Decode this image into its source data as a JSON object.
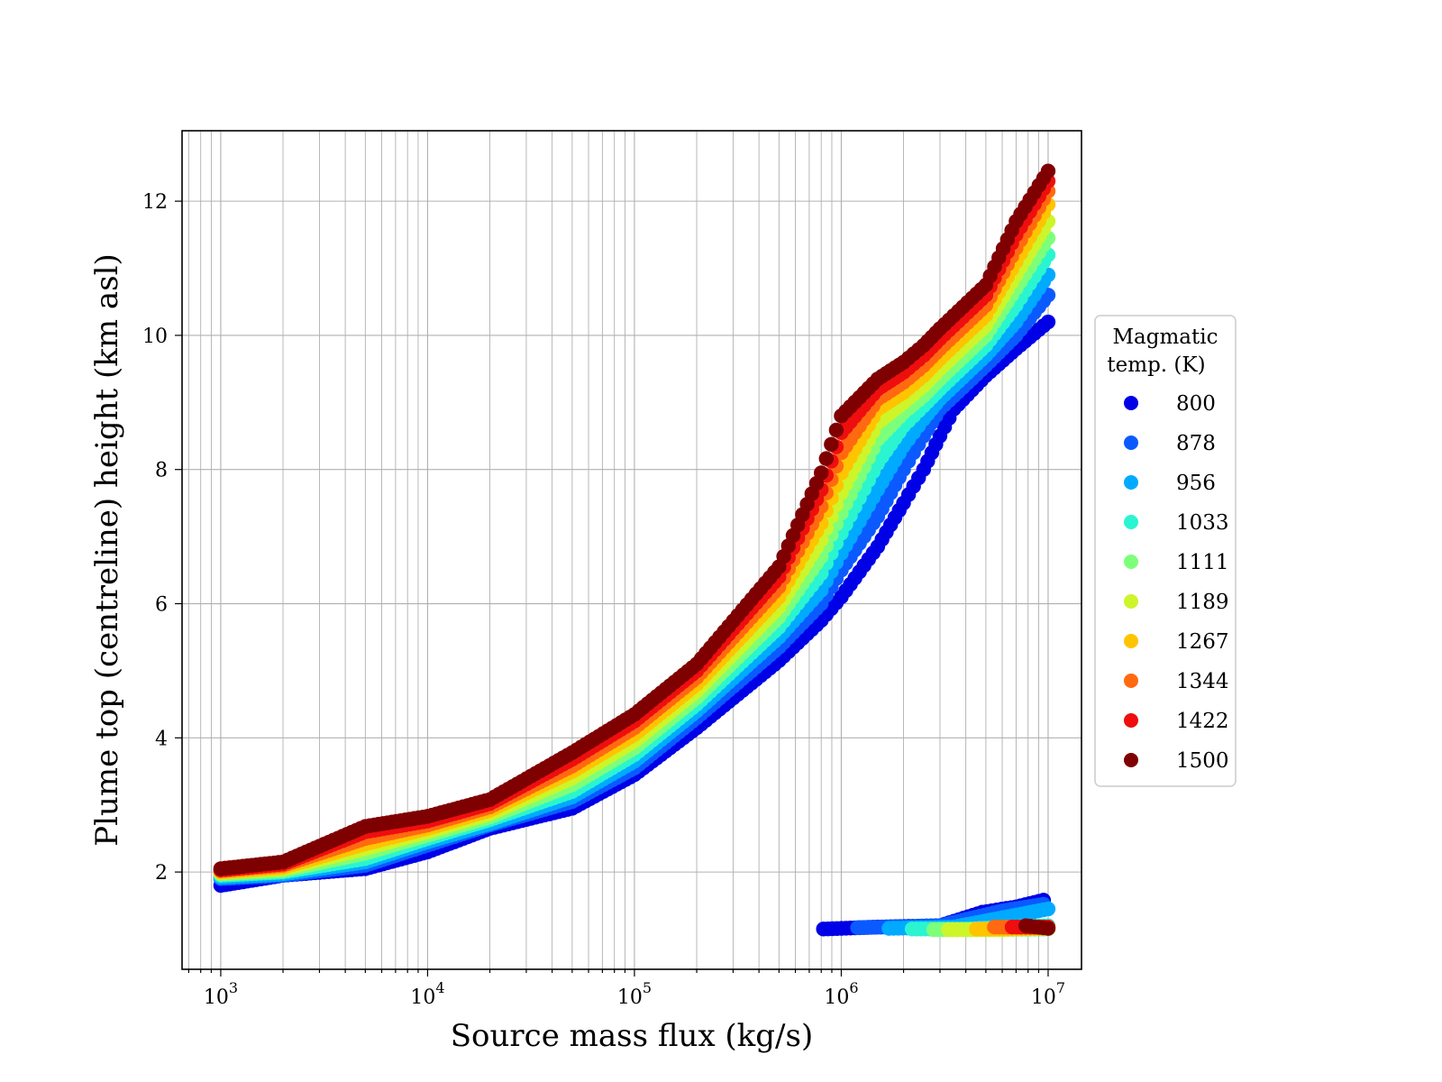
{
  "chart_data": {
    "type": "scatter",
    "title": "",
    "xlabel": "Source mass flux (kg/s)",
    "ylabel": "Plume top (centreline) height (km asl)",
    "xscale": "log",
    "xlim": [
      650,
      14500000
    ],
    "ylim": [
      0.55,
      13.05
    ],
    "x_ticks": [
      {
        "base": "10",
        "exp": "3",
        "value": 1000
      },
      {
        "base": "10",
        "exp": "4",
        "value": 10000
      },
      {
        "base": "10",
        "exp": "5",
        "value": 100000
      },
      {
        "base": "10",
        "exp": "6",
        "value": 1000000
      },
      {
        "base": "10",
        "exp": "7",
        "value": 10000000
      }
    ],
    "y_ticks": [
      "2",
      "4",
      "6",
      "8",
      "10",
      "12"
    ],
    "grid": "major and minor (x), major (y)",
    "legend": {
      "title_line1": "Magmatic",
      "title_line2": "temp. (K)",
      "placement": "outside right"
    },
    "series": [
      {
        "name": "800",
        "color": "#0000e6",
        "points": [
          [
            1000,
            1.8
          ],
          [
            2000,
            1.95
          ],
          [
            5000,
            2.05
          ],
          [
            10000,
            2.3
          ],
          [
            20000,
            2.65
          ],
          [
            50000,
            2.95
          ],
          [
            100000,
            3.45
          ],
          [
            200000,
            4.15
          ],
          [
            500000,
            5.15
          ],
          [
            800000,
            5.75
          ],
          [
            1000000,
            6.1
          ],
          [
            1500000,
            6.85
          ],
          [
            2000000,
            7.5
          ],
          [
            2500000,
            8.0
          ],
          [
            3000000,
            8.5
          ],
          [
            3500000,
            8.9
          ],
          [
            5000000,
            9.4
          ],
          [
            7000000,
            9.8
          ],
          [
            10000000,
            10.2
          ]
        ]
      },
      {
        "name": "878",
        "color": "#0a5aff",
        "points": [
          [
            1000,
            1.9
          ],
          [
            2000,
            1.95
          ],
          [
            5000,
            2.1
          ],
          [
            10000,
            2.4
          ],
          [
            20000,
            2.7
          ],
          [
            50000,
            3.05
          ],
          [
            100000,
            3.55
          ],
          [
            200000,
            4.3
          ],
          [
            500000,
            5.35
          ],
          [
            800000,
            6.0
          ],
          [
            1000000,
            6.5
          ],
          [
            1500000,
            7.3
          ],
          [
            2000000,
            8.0
          ],
          [
            2500000,
            8.5
          ],
          [
            3000000,
            8.9
          ],
          [
            5000000,
            9.55
          ],
          [
            7000000,
            10.0
          ],
          [
            10000000,
            10.6
          ]
        ]
      },
      {
        "name": "956",
        "color": "#00aaff",
        "points": [
          [
            1000,
            1.92
          ],
          [
            2000,
            1.97
          ],
          [
            5000,
            2.15
          ],
          [
            10000,
            2.45
          ],
          [
            20000,
            2.72
          ],
          [
            50000,
            3.12
          ],
          [
            100000,
            3.65
          ],
          [
            200000,
            4.4
          ],
          [
            500000,
            5.5
          ],
          [
            800000,
            6.2
          ],
          [
            1000000,
            6.75
          ],
          [
            1500000,
            7.7
          ],
          [
            2000000,
            8.35
          ],
          [
            2500000,
            8.75
          ],
          [
            3000000,
            9.05
          ],
          [
            5000000,
            9.7
          ],
          [
            7000000,
            10.2
          ],
          [
            10000000,
            10.9
          ]
        ]
      },
      {
        "name": "1033",
        "color": "#2af5d0",
        "points": [
          [
            1000,
            1.95
          ],
          [
            2000,
            2.0
          ],
          [
            5000,
            2.2
          ],
          [
            10000,
            2.5
          ],
          [
            20000,
            2.78
          ],
          [
            50000,
            3.2
          ],
          [
            100000,
            3.75
          ],
          [
            200000,
            4.5
          ],
          [
            500000,
            5.65
          ],
          [
            800000,
            6.45
          ],
          [
            1000000,
            7.05
          ],
          [
            1500000,
            8.1
          ],
          [
            2000000,
            8.65
          ],
          [
            2500000,
            8.95
          ],
          [
            3000000,
            9.2
          ],
          [
            5000000,
            9.85
          ],
          [
            7000000,
            10.45
          ],
          [
            10000000,
            11.2
          ]
        ]
      },
      {
        "name": "1111",
        "color": "#7dff7a",
        "points": [
          [
            1000,
            1.97
          ],
          [
            2000,
            2.02
          ],
          [
            5000,
            2.28
          ],
          [
            10000,
            2.55
          ],
          [
            20000,
            2.82
          ],
          [
            50000,
            3.3
          ],
          [
            100000,
            3.85
          ],
          [
            200000,
            4.6
          ],
          [
            500000,
            5.8
          ],
          [
            800000,
            6.7
          ],
          [
            1000000,
            7.35
          ],
          [
            1500000,
            8.45
          ],
          [
            2000000,
            8.85
          ],
          [
            2500000,
            9.1
          ],
          [
            3000000,
            9.35
          ],
          [
            5000000,
            10.0
          ],
          [
            7000000,
            10.7
          ],
          [
            10000000,
            11.45
          ]
        ]
      },
      {
        "name": "1189",
        "color": "#cdf52a",
        "points": [
          [
            1000,
            1.99
          ],
          [
            2000,
            2.05
          ],
          [
            5000,
            2.35
          ],
          [
            10000,
            2.6
          ],
          [
            20000,
            2.87
          ],
          [
            50000,
            3.4
          ],
          [
            100000,
            3.95
          ],
          [
            200000,
            4.7
          ],
          [
            500000,
            5.95
          ],
          [
            800000,
            6.95
          ],
          [
            1000000,
            7.65
          ],
          [
            1500000,
            8.7
          ],
          [
            2000000,
            9.0
          ],
          [
            2500000,
            9.25
          ],
          [
            3000000,
            9.5
          ],
          [
            5000000,
            10.15
          ],
          [
            7000000,
            10.9
          ],
          [
            10000000,
            11.7
          ]
        ]
      },
      {
        "name": "1267",
        "color": "#ffc400",
        "points": [
          [
            1000,
            2.0
          ],
          [
            2000,
            2.07
          ],
          [
            5000,
            2.42
          ],
          [
            10000,
            2.65
          ],
          [
            20000,
            2.92
          ],
          [
            50000,
            3.5
          ],
          [
            100000,
            4.05
          ],
          [
            200000,
            4.8
          ],
          [
            500000,
            6.1
          ],
          [
            800000,
            7.2
          ],
          [
            1000000,
            7.95
          ],
          [
            1500000,
            8.9
          ],
          [
            2000000,
            9.15
          ],
          [
            2500000,
            9.4
          ],
          [
            3000000,
            9.65
          ],
          [
            5000000,
            10.3
          ],
          [
            7000000,
            11.1
          ],
          [
            10000000,
            11.95
          ]
        ]
      },
      {
        "name": "1344",
        "color": "#ff6a10",
        "points": [
          [
            1000,
            2.02
          ],
          [
            2000,
            2.1
          ],
          [
            5000,
            2.5
          ],
          [
            10000,
            2.7
          ],
          [
            20000,
            2.97
          ],
          [
            50000,
            3.58
          ],
          [
            100000,
            4.15
          ],
          [
            200000,
            4.9
          ],
          [
            500000,
            6.25
          ],
          [
            800000,
            7.45
          ],
          [
            1000000,
            8.25
          ],
          [
            1500000,
            9.05
          ],
          [
            2000000,
            9.3
          ],
          [
            2500000,
            9.55
          ],
          [
            3000000,
            9.8
          ],
          [
            5000000,
            10.45
          ],
          [
            7000000,
            11.3
          ],
          [
            10000000,
            12.15
          ]
        ]
      },
      {
        "name": "1422",
        "color": "#ee0e0e",
        "points": [
          [
            1000,
            2.03
          ],
          [
            2000,
            2.12
          ],
          [
            5000,
            2.6
          ],
          [
            10000,
            2.76
          ],
          [
            20000,
            3.02
          ],
          [
            50000,
            3.68
          ],
          [
            100000,
            4.25
          ],
          [
            200000,
            5.0
          ],
          [
            500000,
            6.4
          ],
          [
            800000,
            7.7
          ],
          [
            1000000,
            8.55
          ],
          [
            1500000,
            9.2
          ],
          [
            2000000,
            9.45
          ],
          [
            2500000,
            9.7
          ],
          [
            3000000,
            9.95
          ],
          [
            5000000,
            10.6
          ],
          [
            7000000,
            11.5
          ],
          [
            10000000,
            12.3
          ]
        ]
      },
      {
        "name": "1500",
        "color": "#7f0000",
        "points": [
          [
            1000,
            2.05
          ],
          [
            2000,
            2.15
          ],
          [
            5000,
            2.68
          ],
          [
            10000,
            2.83
          ],
          [
            20000,
            3.08
          ],
          [
            50000,
            3.78
          ],
          [
            100000,
            4.35
          ],
          [
            200000,
            5.1
          ],
          [
            500000,
            6.55
          ],
          [
            800000,
            7.95
          ],
          [
            1000000,
            8.8
          ],
          [
            1500000,
            9.35
          ],
          [
            2000000,
            9.6
          ],
          [
            2500000,
            9.85
          ],
          [
            3000000,
            10.1
          ],
          [
            5000000,
            10.75
          ],
          [
            7000000,
            11.7
          ],
          [
            10000000,
            12.45
          ]
        ]
      }
    ],
    "lower_branch": [
      {
        "series": "800",
        "points": [
          [
            820000,
            1.15
          ],
          [
            1500000,
            1.18
          ],
          [
            3000000,
            1.2
          ],
          [
            4800000,
            1.4
          ],
          [
            7000000,
            1.48
          ],
          [
            9500000,
            1.58
          ]
        ]
      },
      {
        "series": "878",
        "points": [
          [
            1200000,
            1.17
          ],
          [
            3000000,
            1.2
          ],
          [
            6000000,
            1.42
          ],
          [
            9500000,
            1.52
          ]
        ]
      },
      {
        "series": "956",
        "points": [
          [
            1700000,
            1.16
          ],
          [
            3500000,
            1.18
          ],
          [
            10000000,
            1.45
          ]
        ]
      },
      {
        "series": "1033",
        "points": [
          [
            2200000,
            1.15
          ],
          [
            4000000,
            1.15
          ],
          [
            10000000,
            1.2
          ]
        ]
      },
      {
        "series": "1111",
        "points": [
          [
            2800000,
            1.14
          ],
          [
            5000000,
            1.14
          ],
          [
            10000000,
            1.15
          ]
        ]
      },
      {
        "series": "1189",
        "points": [
          [
            3300000,
            1.14
          ],
          [
            6000000,
            1.14
          ],
          [
            10000000,
            1.18
          ]
        ]
      },
      {
        "series": "1267",
        "points": [
          [
            4500000,
            1.15
          ],
          [
            10000000,
            1.16
          ]
        ]
      },
      {
        "series": "1344",
        "points": [
          [
            5500000,
            1.18
          ],
          [
            10000000,
            1.17
          ]
        ]
      },
      {
        "series": "1422",
        "points": [
          [
            6700000,
            1.18
          ],
          [
            10000000,
            1.18
          ]
        ]
      },
      {
        "series": "1500",
        "points": [
          [
            7800000,
            1.2
          ],
          [
            10000000,
            1.16
          ]
        ]
      }
    ]
  }
}
